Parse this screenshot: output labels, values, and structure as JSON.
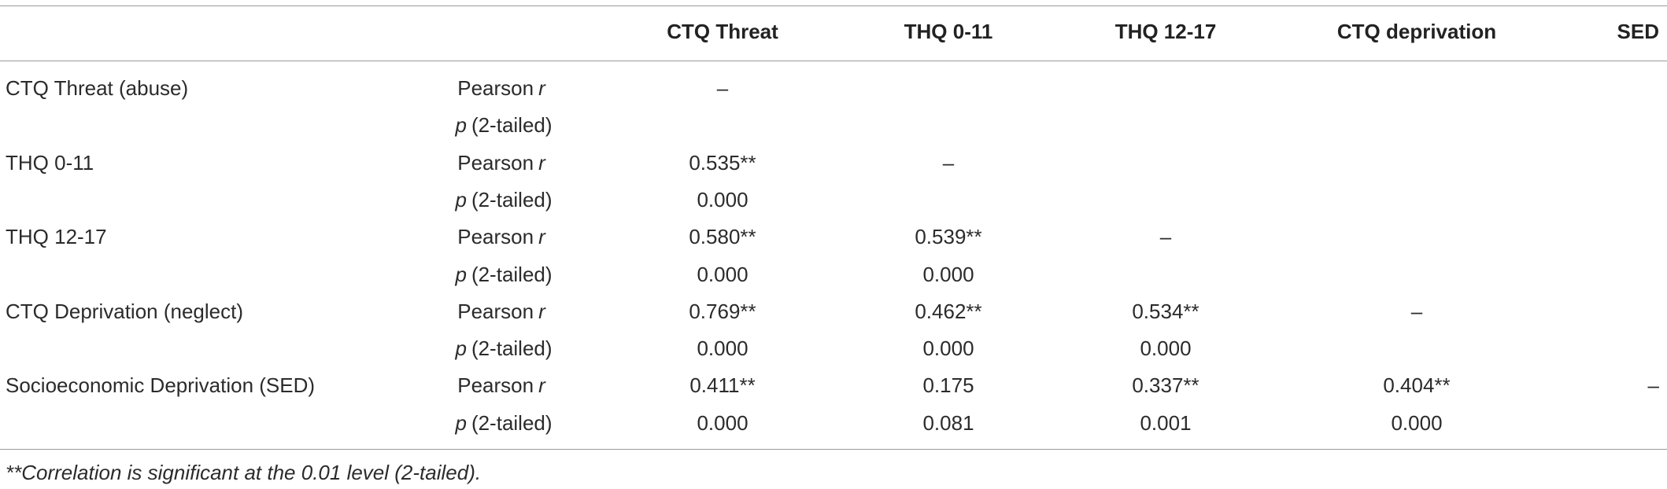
{
  "table": {
    "columns": [
      "CTQ Threat",
      "THQ 0-11",
      "THQ 12-17",
      "CTQ deprivation",
      "SED"
    ],
    "stats": {
      "pearson": {
        "text": "Pearson",
        "symbol": "r"
      },
      "p": {
        "symbol": "p",
        "text": "(2-tailed)"
      }
    },
    "rows": [
      {
        "label": "CTQ Threat (abuse)",
        "pearson": [
          "–"
        ],
        "p": []
      },
      {
        "label": "THQ 0-11",
        "pearson": [
          "0.535**",
          "–"
        ],
        "p": [
          "0.000"
        ]
      },
      {
        "label": "THQ 12-17",
        "pearson": [
          "0.580**",
          "0.539**",
          "–"
        ],
        "p": [
          "0.000",
          "0.000"
        ]
      },
      {
        "label": "CTQ Deprivation (neglect)",
        "pearson": [
          "0.769**",
          "0.462**",
          "0.534**",
          "–"
        ],
        "p": [
          "0.000",
          "0.000",
          "0.000"
        ]
      },
      {
        "label": "Socioeconomic Deprivation (SED)",
        "pearson": [
          "0.411**",
          "0.175",
          "0.337**",
          "0.404**",
          "–"
        ],
        "p": [
          "0.000",
          "0.081",
          "0.001",
          "0.000"
        ]
      }
    ],
    "footnote": "**Correlation is significant at the 0.01 level (2-tailed)."
  }
}
